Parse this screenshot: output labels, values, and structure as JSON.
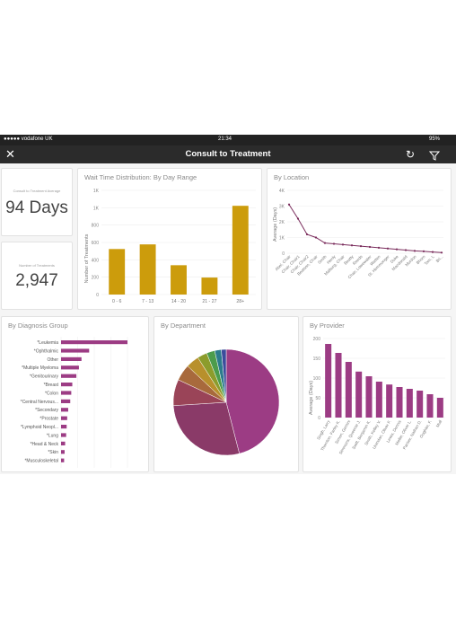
{
  "statusbar": {
    "carrier": "●●●●● vodafone UK",
    "time": "21:34",
    "battery": "95%"
  },
  "header": {
    "title": "Consult to Treatment",
    "close_icon": "close-icon",
    "refresh_icon": "refresh-icon",
    "filter_icon": "filter-icon"
  },
  "kpis": [
    {
      "label": "Consult to Treatment Average",
      "value": "94 Days"
    },
    {
      "label": "Number of Treatments",
      "value": "2,947"
    }
  ],
  "colors": {
    "gold": "#cc9c0c",
    "purple": "#9c3c84",
    "line": "#7a2c5c"
  },
  "wait_chart": {
    "title": "Wait Time Distribution: By Day Range",
    "ylabel": "Number of Treatments",
    "yticks": [
      "0",
      "200",
      "400",
      "600",
      "800",
      "1K",
      "1K"
    ]
  },
  "location_chart": {
    "title": "By Location",
    "ylabel": "Average (Days)",
    "yticks": [
      "0",
      "1K",
      "2K",
      "3K",
      "4K"
    ]
  },
  "diagnosis_chart": {
    "title": "By Diagnosis Group"
  },
  "department_chart": {
    "title": "By Department"
  },
  "provider_chart": {
    "title": "By Provider",
    "ylabel": "Average (Days)",
    "yticks": [
      "0",
      "50",
      "100",
      "150",
      "200"
    ]
  },
  "chart_data": [
    {
      "type": "bar",
      "title": "Wait Time Distribution: By Day Range",
      "ylabel": "Number of Treatments",
      "categories": [
        "0 - 6",
        "7 - 13",
        "14 - 20",
        "21 - 27",
        "28+"
      ],
      "values": [
        590,
        650,
        380,
        220,
        1150
      ],
      "ylim": [
        0,
        1350
      ]
    },
    {
      "type": "line",
      "title": "By Location",
      "ylabel": "Average (Days)",
      "categories": [
        "Abel, Chair",
        "Chair, Chair1",
        "Chair, Chair2",
        "Beatson, Chair",
        "Smith",
        "Henly",
        "Malburg, Chair",
        "Beatty",
        "Reeds",
        "Chair, Lowewater",
        "Watten",
        "St. Hemmonger",
        "Duke",
        "Macdonald",
        "Murdon",
        "Bhorn",
        "Tom, L",
        "Bri..."
      ],
      "values": [
        3100,
        2200,
        1200,
        1000,
        650,
        600,
        550,
        500,
        450,
        400,
        350,
        300,
        250,
        200,
        150,
        120,
        80,
        40
      ],
      "ylim": [
        0,
        4000
      ]
    },
    {
      "type": "bar",
      "title": "By Diagnosis Group",
      "categories": [
        "*Leukemia",
        "*Ophthalmic",
        "Other",
        "*Multiple Myeloma",
        "*Genitourinary",
        "*Breast",
        "*Colon",
        "*Central Nervous...",
        "*Secondary",
        "*Prostate",
        "*Lymphoid Neopl...",
        "*Lung",
        "*Head & Neck",
        "*Skin",
        "*Musculoskeletal"
      ],
      "values": [
        130,
        55,
        40,
        35,
        30,
        22,
        20,
        18,
        14,
        12,
        11,
        10,
        8,
        7,
        6
      ]
    },
    {
      "type": "pie",
      "title": "By Department",
      "values": [
        46,
        28,
        8,
        5,
        4,
        3,
        2.5,
        2,
        1.5
      ],
      "colors": [
        "#9c3c84",
        "#8a3a68",
        "#9a4458",
        "#a86a3c",
        "#b8902c",
        "#8c9c2c",
        "#4c9c4c",
        "#2c7c8c",
        "#3c4c9c"
      ]
    },
    {
      "type": "bar",
      "title": "By Provider",
      "ylabel": "Average (Days)",
      "categories": [
        "Singh, Larry",
        "Thornton, Farley K.",
        "Simon, Gemini",
        "Simmons, Queenie J.",
        "Swift, Benjamin K.",
        "Smith, Kelley V.",
        "Urendan, Oliver F.",
        "Lewis, Dennis",
        "Meller, Oliver L.",
        "Pariser, Nathan D.",
        "Oughter, F.",
        "Mull"
      ],
      "values": [
        205,
        180,
        155,
        128,
        115,
        100,
        92,
        85,
        80,
        75,
        65,
        55
      ],
      "ylim": [
        0,
        220
      ]
    }
  ]
}
